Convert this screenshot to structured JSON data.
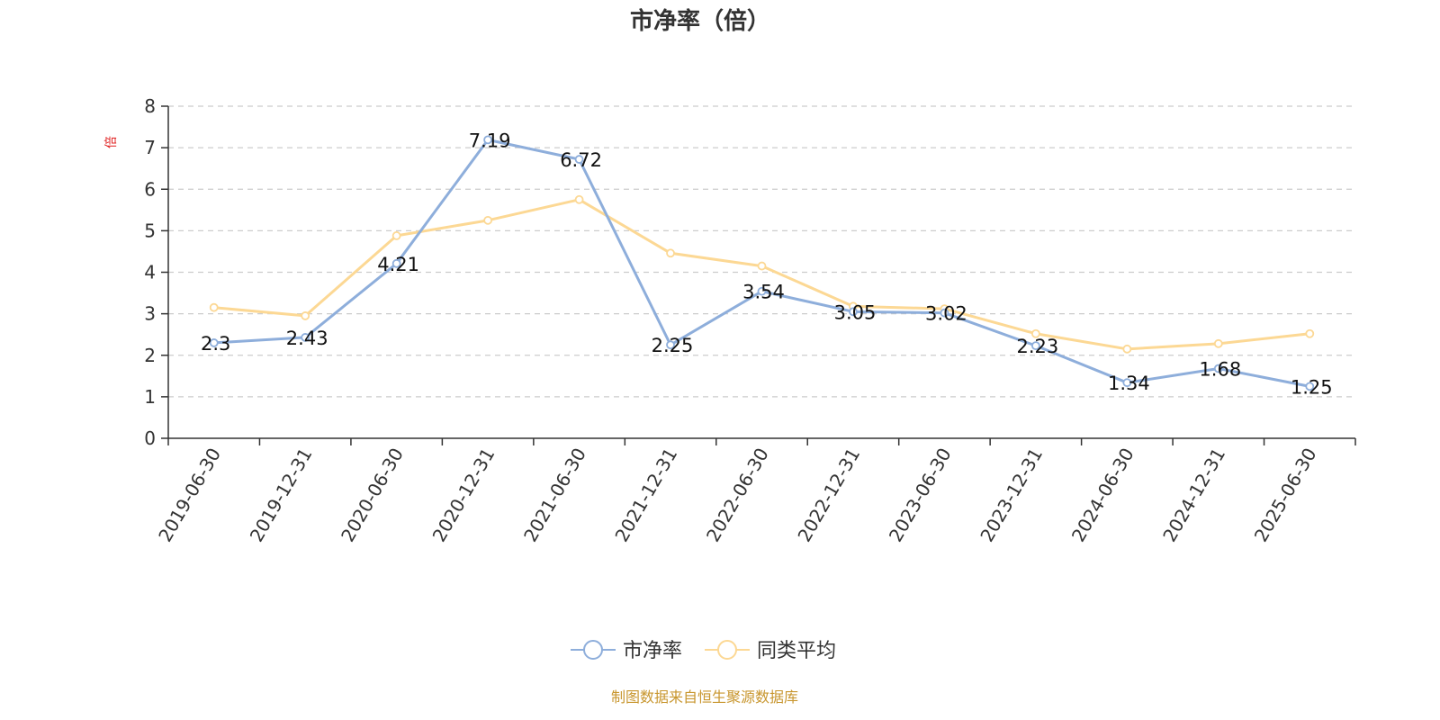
{
  "chart_data": {
    "type": "line",
    "title": "市净率（倍）",
    "ylabel": "倍",
    "ylim": [
      0,
      8
    ],
    "yticks": [
      "0",
      "1",
      "2",
      "3",
      "4",
      "5",
      "6",
      "7",
      "8"
    ],
    "grid": true,
    "legend_position": "bottom-center",
    "categories": [
      "2019-06-30",
      "2019-12-31",
      "2020-06-30",
      "2020-12-31",
      "2021-06-30",
      "2021-12-31",
      "2022-06-30",
      "2022-12-31",
      "2023-06-30",
      "2023-12-31",
      "2024-06-30",
      "2024-12-31",
      "2025-06-30"
    ],
    "series": [
      {
        "name": "市净率",
        "color": "#8eaedb",
        "values": [
          2.3,
          2.43,
          4.21,
          7.19,
          6.72,
          2.25,
          3.54,
          3.05,
          3.02,
          2.23,
          1.34,
          1.68,
          1.25
        ],
        "labels": [
          "2.3",
          "2.43",
          "4.21",
          "7.19",
          "6.72",
          "2.25",
          "3.54",
          "3.05",
          "3.02",
          "2.23",
          "1.34",
          "1.68",
          "1.25"
        ]
      },
      {
        "name": "同类平均",
        "color": "#fcd894",
        "values": [
          3.15,
          2.95,
          4.88,
          5.25,
          5.75,
          4.46,
          4.15,
          3.18,
          3.12,
          2.52,
          2.15,
          2.28,
          2.52
        ]
      }
    ]
  },
  "source": {
    "text": "制图数据来自恒生聚源数据库",
    "color": "#c8962e"
  }
}
